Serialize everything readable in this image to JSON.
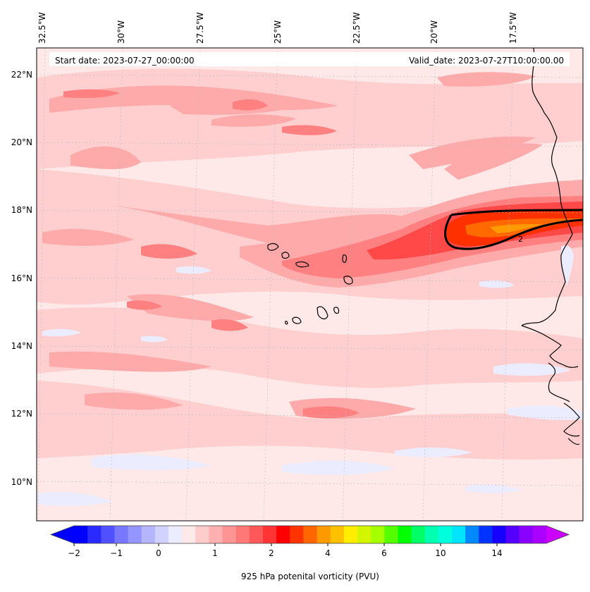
{
  "header": {
    "start_date": "Start date: 2023-07-27_00:00:00",
    "valid_date": "Valid_date: 2023-07-27T10:00:00.00"
  },
  "longitude_labels": [
    "32.5°W",
    "30°W",
    "27.5°W",
    "25°W",
    "22.5°W",
    "20°W",
    "17.5°W"
  ],
  "latitude_labels": [
    "22°N",
    "20°N",
    "18°N",
    "16°N",
    "14°N",
    "12°N",
    "10°N"
  ],
  "contour_label": "2",
  "colorbar": {
    "label": "925 hPa potenital vorticity (PVU)",
    "tick_labels": [
      "−2",
      "−1",
      "0",
      "1",
      "2",
      "4",
      "6",
      "10",
      "14"
    ],
    "colors": [
      "#0000ff",
      "#2a2aff",
      "#5050ff",
      "#7878ff",
      "#9595ff",
      "#b4b4ff",
      "#d2d2ff",
      "#ececff",
      "#ffe8e8",
      "#ffcccc",
      "#ffb0b0",
      "#ff9494",
      "#ff7878",
      "#ff5858",
      "#ff3434",
      "#ff0000",
      "#ff3300",
      "#ff6600",
      "#ff9900",
      "#ffc000",
      "#ffee00",
      "#d4f500",
      "#a6ff00",
      "#55ff00",
      "#00ff00",
      "#00ff66",
      "#00ffb0",
      "#00ffdd",
      "#00e5ff",
      "#0088ff",
      "#0033ff",
      "#1500ff",
      "#5500ff",
      "#8c00ff",
      "#aa00ff"
    ],
    "extend_min_color": "#0000ff",
    "extend_max_color": "#cc00ff"
  },
  "palette": {
    "background_field": "#ffe8e8",
    "light_pink": "#ffcfcf",
    "pink": "#ffaaaa",
    "salmon": "#ff8080",
    "red": "#ff4848",
    "orange_red": "#ff3000",
    "orange": "#ff9a00",
    "pale_blue": "#ececff",
    "coast": "#000000"
  }
}
